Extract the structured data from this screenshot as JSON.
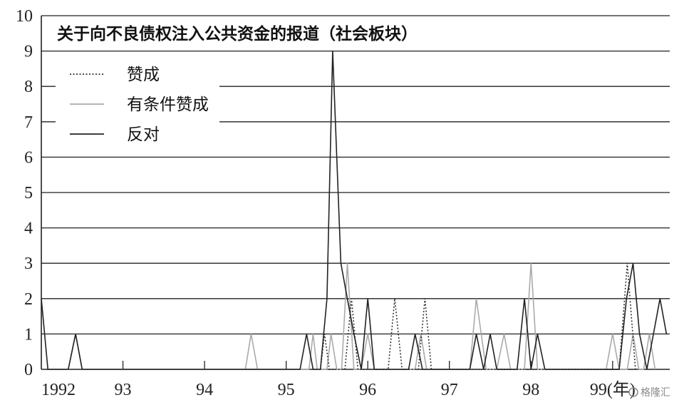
{
  "chart_data": {
    "type": "line",
    "title": "关于向不良债权注入公共资金的报道（社会板块）",
    "xlabel": "",
    "ylabel": "",
    "ylim": [
      0,
      10
    ],
    "yticks": [
      0,
      1,
      2,
      3,
      4,
      5,
      6,
      7,
      8,
      9,
      10
    ],
    "xlim": [
      1992.0,
      1999.7
    ],
    "xtick_labels": [
      {
        "x": 1992.0,
        "label": "1992"
      },
      {
        "x": 1993.0,
        "label": "93"
      },
      {
        "x": 1994.0,
        "label": "94"
      },
      {
        "x": 1995.0,
        "label": "95"
      },
      {
        "x": 1996.0,
        "label": "96"
      },
      {
        "x": 1997.0,
        "label": "97"
      },
      {
        "x": 1998.0,
        "label": "98"
      },
      {
        "x": 1999.0,
        "label": "99(年)"
      }
    ],
    "grid": "horizontal",
    "legend_position": "top-left",
    "series": [
      {
        "name": "赞成",
        "style": "dotted",
        "color": "#333333",
        "points": [
          [
            1995.42,
            0
          ],
          [
            1995.47,
            1
          ],
          [
            1995.53,
            0
          ],
          [
            1995.72,
            0
          ],
          [
            1995.8,
            2
          ],
          [
            1995.88,
            0
          ],
          [
            1996.25,
            0
          ],
          [
            1996.33,
            2
          ],
          [
            1996.42,
            0
          ],
          [
            1996.62,
            0
          ],
          [
            1996.7,
            2
          ],
          [
            1996.78,
            0
          ],
          [
            1999.08,
            0
          ],
          [
            1999.18,
            3
          ],
          [
            1999.28,
            0
          ]
        ]
      },
      {
        "name": "有条件赞成",
        "style": "solid",
        "color": "#aaaaaa",
        "points": [
          [
            1992.33,
            0
          ],
          [
            1992.42,
            1
          ],
          [
            1992.5,
            0
          ],
          [
            1994.5,
            0
          ],
          [
            1994.57,
            1
          ],
          [
            1994.65,
            0
          ],
          [
            1995.28,
            0
          ],
          [
            1995.33,
            1
          ],
          [
            1995.38,
            0
          ],
          [
            1995.5,
            0
          ],
          [
            1995.55,
            1
          ],
          [
            1995.62,
            0
          ],
          [
            1995.68,
            0
          ],
          [
            1995.75,
            3
          ],
          [
            1995.83,
            0
          ],
          [
            1995.92,
            0
          ],
          [
            1996.0,
            1
          ],
          [
            1996.08,
            0
          ],
          [
            1996.58,
            0
          ],
          [
            1996.65,
            1
          ],
          [
            1996.72,
            0
          ],
          [
            1997.25,
            0
          ],
          [
            1997.33,
            2
          ],
          [
            1997.45,
            0
          ],
          [
            1997.58,
            0
          ],
          [
            1997.67,
            1
          ],
          [
            1997.75,
            0
          ],
          [
            1997.92,
            0
          ],
          [
            1998.0,
            3
          ],
          [
            1998.08,
            0
          ],
          [
            1998.92,
            0
          ],
          [
            1999.0,
            1
          ],
          [
            1999.08,
            0
          ],
          [
            1999.18,
            0
          ],
          [
            1999.25,
            1
          ],
          [
            1999.32,
            0
          ],
          [
            1999.38,
            0
          ],
          [
            1999.45,
            1
          ],
          [
            1999.52,
            0
          ]
        ]
      },
      {
        "name": "反对",
        "style": "solid",
        "color": "#222222",
        "points": [
          [
            1992.0,
            2
          ],
          [
            1992.08,
            0
          ],
          [
            1992.33,
            0
          ],
          [
            1992.42,
            1
          ],
          [
            1992.5,
            0
          ],
          [
            1995.17,
            0
          ],
          [
            1995.25,
            1
          ],
          [
            1995.33,
            0
          ],
          [
            1995.42,
            0
          ],
          [
            1995.5,
            2
          ],
          [
            1995.57,
            9
          ],
          [
            1995.67,
            3
          ],
          [
            1995.75,
            2
          ],
          [
            1995.83,
            1
          ],
          [
            1995.92,
            0
          ],
          [
            1996.0,
            2
          ],
          [
            1996.08,
            0
          ],
          [
            1996.5,
            0
          ],
          [
            1996.58,
            1
          ],
          [
            1996.67,
            0
          ],
          [
            1997.25,
            0
          ],
          [
            1997.33,
            1
          ],
          [
            1997.42,
            0
          ],
          [
            1997.5,
            1
          ],
          [
            1997.58,
            0
          ],
          [
            1997.83,
            0
          ],
          [
            1997.92,
            2
          ],
          [
            1998.0,
            0
          ],
          [
            1998.08,
            1
          ],
          [
            1998.17,
            0
          ],
          [
            1999.08,
            0
          ],
          [
            1999.17,
            2
          ],
          [
            1999.25,
            3
          ],
          [
            1999.33,
            1
          ],
          [
            1999.42,
            0
          ],
          [
            1999.5,
            1
          ],
          [
            1999.58,
            2
          ],
          [
            1999.66,
            1
          ]
        ]
      }
    ]
  },
  "watermark": "格隆汇"
}
